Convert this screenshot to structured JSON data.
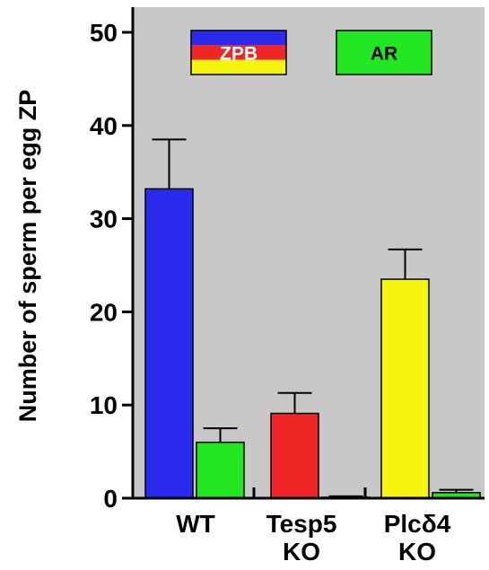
{
  "chart_data": {
    "type": "bar",
    "ylabel": "Number of sperm per egg ZP",
    "ylim": [
      0,
      52
    ],
    "yticks": [
      0,
      10,
      20,
      30,
      40,
      50
    ],
    "grid": false,
    "plot_background": "#c8c8c8",
    "groups": [
      {
        "label_lines": [
          "WT"
        ]
      },
      {
        "label_lines": [
          "Tesp5",
          "KO"
        ]
      },
      {
        "label_lines": [
          "Plcδ4",
          "KO"
        ]
      }
    ],
    "series": [
      {
        "name": "ZPB",
        "values": [
          33.2,
          9.1,
          23.5
        ],
        "errors": [
          5.3,
          2.2,
          3.2
        ],
        "colors": [
          "#2b2bf0",
          "#f02626",
          "#f5f50f"
        ]
      },
      {
        "name": "AR",
        "values": [
          6.0,
          0.1,
          0.6
        ],
        "errors": [
          1.5,
          0.1,
          0.3
        ],
        "colors": [
          "#22e622",
          "#22e622",
          "#22e622"
        ]
      }
    ],
    "legend": {
      "placement": "top",
      "entries": [
        {
          "label": "ZPB",
          "stripes": [
            "#2b2bf0",
            "#f02626",
            "#f5f50f"
          ]
        },
        {
          "label": "AR",
          "stripes": [
            "#22e622"
          ]
        }
      ]
    }
  }
}
